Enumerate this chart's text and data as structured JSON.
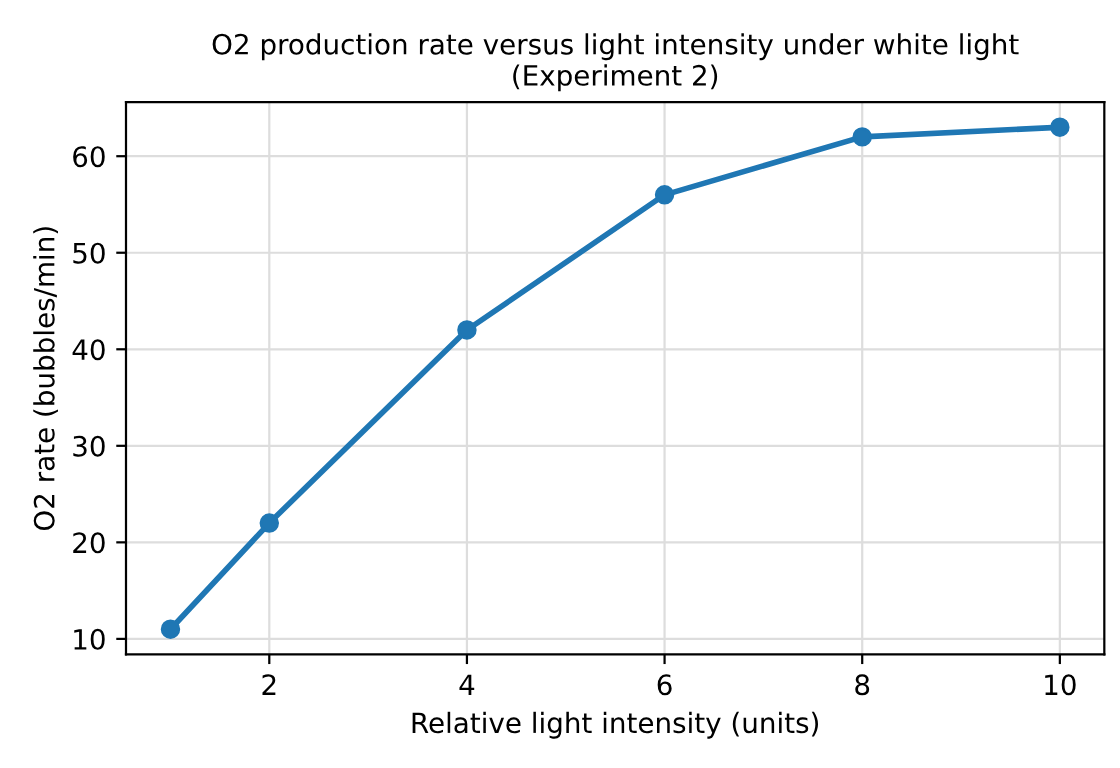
{
  "chart_data": {
    "type": "line",
    "title": "O2 production rate versus light intensity under white light\n(Experiment 2)",
    "xlabel": "Relative light intensity (units)",
    "ylabel": "O2 rate (bubbles/min)",
    "x": [
      1,
      2,
      4,
      6,
      8,
      10
    ],
    "series": [
      {
        "color": "#1f77b4",
        "values": [
          11,
          22,
          42,
          56,
          62,
          63
        ]
      }
    ],
    "xlim": [
      0.55,
      10.45
    ],
    "ylim": [
      8.4,
      65.6
    ],
    "xticks": [
      2,
      4,
      6,
      8,
      10
    ],
    "yticks": [
      10,
      20,
      30,
      40,
      50,
      60
    ],
    "grid": true,
    "marker": "circle",
    "line_style": "solid"
  }
}
